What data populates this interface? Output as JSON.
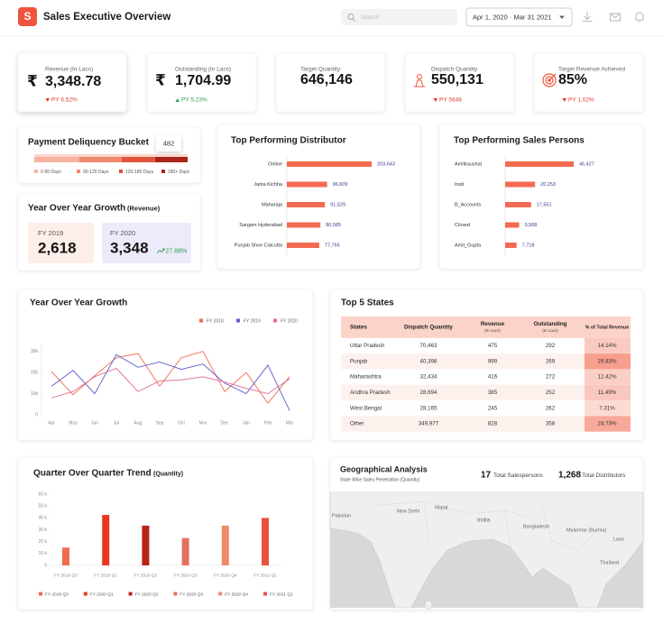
{
  "header": {
    "logo": "S",
    "title": "Sales Executive Overview",
    "search_placeholder": "Search",
    "date_range": "Apr 1, 2020 · Mar 31 2021"
  },
  "kpis": [
    {
      "label": "Revenue (In Lacs)",
      "currency": "₹",
      "value": "3,348.78",
      "change": "PY 6.52%",
      "trend": "down"
    },
    {
      "label": "Outstanding (In Lacs)",
      "currency": "₹",
      "value": "1,704.99",
      "change": "PY 5.23%",
      "trend": "up"
    },
    {
      "label": "Target Quantity",
      "value": "646,146"
    },
    {
      "label": "Dispatch Quantity",
      "value": "550,131",
      "change": "PY 5648",
      "trend": "down"
    },
    {
      "label": "Target Revenue Achieved",
      "value": "85%",
      "change": "PY 1.02%",
      "trend": "down"
    }
  ],
  "payment_bucket": {
    "type": "stacked_bar",
    "title": "Payment Deliquency Bucket",
    "categories": [
      "0-90 Days",
      "90-120 Days",
      "120-180 Days",
      "180+ Days"
    ],
    "values": [
      670,
      630,
      496,
      482
    ],
    "colors": [
      "#f7b3a0",
      "#f08a6f",
      "#e0553a",
      "#a8261a"
    ]
  },
  "yoy_cards": {
    "title": "Year Over Year Growth",
    "subtitle": "(Revenue)",
    "items": [
      {
        "label": "FY 2019",
        "value": "2,618"
      },
      {
        "label": "FY 2020",
        "value": "3,348",
        "growth": "27.88%"
      }
    ]
  },
  "top_distributor": {
    "type": "bar",
    "orientation": "horizontal",
    "title": "Top Performing Distributor",
    "categories": [
      "Online",
      "Janta Kichha",
      "Maharaja",
      "Sargam Hyderabad",
      "Punjab Shoe Calcutta"
    ],
    "values": [
      203643,
      96609,
      91529,
      80585,
      77765
    ],
    "value_labels": [
      "203,643",
      "96,609",
      "91,529",
      "80,585",
      "77,765"
    ],
    "color": "#f26b50"
  },
  "top_sales_persons": {
    "type": "bar",
    "orientation": "horizontal",
    "title": "Top Performing Sales Persons",
    "categories": [
      "Amitkaushal",
      "Insti",
      "B_Accounts",
      "Closed",
      "Amit_Gupta"
    ],
    "values": [
      46427,
      20253,
      17551,
      9508,
      7718
    ],
    "value_labels": [
      "46,427",
      "20,253",
      "17,551",
      "9,508",
      "7,718"
    ],
    "color": "#f26b50"
  },
  "yoy_chart": {
    "type": "line",
    "title": "Year Over Year Growth",
    "categories": [
      "Apr",
      "May",
      "Jun",
      "Jul",
      "Aug",
      "Sep",
      "Oct",
      "Nov",
      "Dec",
      "Jan",
      "Feb",
      "Mar"
    ],
    "series": [
      {
        "name": "FY 2018",
        "color": "#ef6a4f",
        "values": [
          20500,
          9500,
          18500,
          27000,
          29000,
          13500,
          27000,
          30000,
          11000,
          20000,
          5500,
          18000
        ]
      },
      {
        "name": "FY 2019",
        "color": "#5c5fc9",
        "values": [
          13500,
          21000,
          10000,
          28500,
          22500,
          25000,
          21500,
          24000,
          15000,
          10000,
          23500,
          2000
        ]
      },
      {
        "name": "FY 2020",
        "color": "#e06a9a",
        "values": [
          8000,
          11000,
          18000,
          22000,
          11000,
          16000,
          16500,
          18000,
          15500,
          12500,
          10000,
          17000
        ]
      }
    ],
    "ylim": [
      0,
      32000
    ],
    "yticks": [
      0,
      {
        "value": 10000,
        "label": "10k"
      },
      {
        "value": 20000,
        "label": "20k"
      },
      {
        "value": 30000,
        "label": "30k"
      }
    ],
    "grid": false
  },
  "top_states": {
    "title": "Top 5 States",
    "columns": [
      {
        "label": "States"
      },
      {
        "label": "Dispatch Quantity"
      },
      {
        "label": "Revenue",
        "sublabel": "(In Lacs)"
      },
      {
        "label": "Outstanding",
        "sublabel": "(In Lacs)"
      },
      {
        "label": "% of Total Revenue"
      }
    ],
    "rows": [
      [
        "Uttar Pradesh",
        "70,463",
        "475",
        "292",
        "14.14%"
      ],
      [
        "Punjab",
        "40,398",
        "999",
        "269",
        "29.83%"
      ],
      [
        "Maharashtra",
        "32,434",
        "416",
        "272",
        "12.42%"
      ],
      [
        "Andhra Pradesh",
        "28,694",
        "385",
        "252",
        "11.49%"
      ],
      [
        "West Bengal",
        "28,165",
        "245",
        "262",
        "7.31%"
      ],
      [
        "Other",
        "349,977",
        "828",
        "358",
        "24.73%"
      ]
    ]
  },
  "qoq_chart": {
    "type": "bar",
    "title": "Quarter Over Quarter Trend",
    "subtitle": "(Quantity)",
    "categories": [
      "FY 2019 Q3",
      "FY 2020 Q1",
      "FY 2020 Q2",
      "FY 2020 Q3",
      "FY 2020 Q4",
      "FY 2021 Q1"
    ],
    "values": [
      15000,
      42500,
      33500,
      23000,
      33500,
      40000
    ],
    "colors": [
      "#f26b50",
      "#e8381f",
      "#b8241a",
      "#e2725f",
      "#f08a6a",
      "#e8513d"
    ],
    "ylim": [
      0,
      60000
    ],
    "yticks": [
      0,
      {
        "value": 10000,
        "label": "10 k"
      },
      {
        "value": 20000,
        "label": "20 k"
      },
      {
        "value": 30000,
        "label": "30 k"
      },
      {
        "value": 40000,
        "label": "40 k"
      },
      {
        "value": 50000,
        "label": "50 k"
      },
      {
        "value": 60000,
        "label": "60 k"
      }
    ]
  },
  "geo": {
    "title": "Geographical Analysis",
    "subtitle": "State Wise Sales Penetration (Quantity)",
    "stats": [
      {
        "value": "17",
        "label": "Total Salespersons"
      },
      {
        "value": "1,268",
        "label": "Total Distributors"
      }
    ],
    "map_labels": [
      "Pakistan",
      "New Delhi",
      "Nepal",
      "India",
      "Bangladesh",
      "Myanmar (Burma)",
      "Laos",
      "Thailand"
    ]
  }
}
